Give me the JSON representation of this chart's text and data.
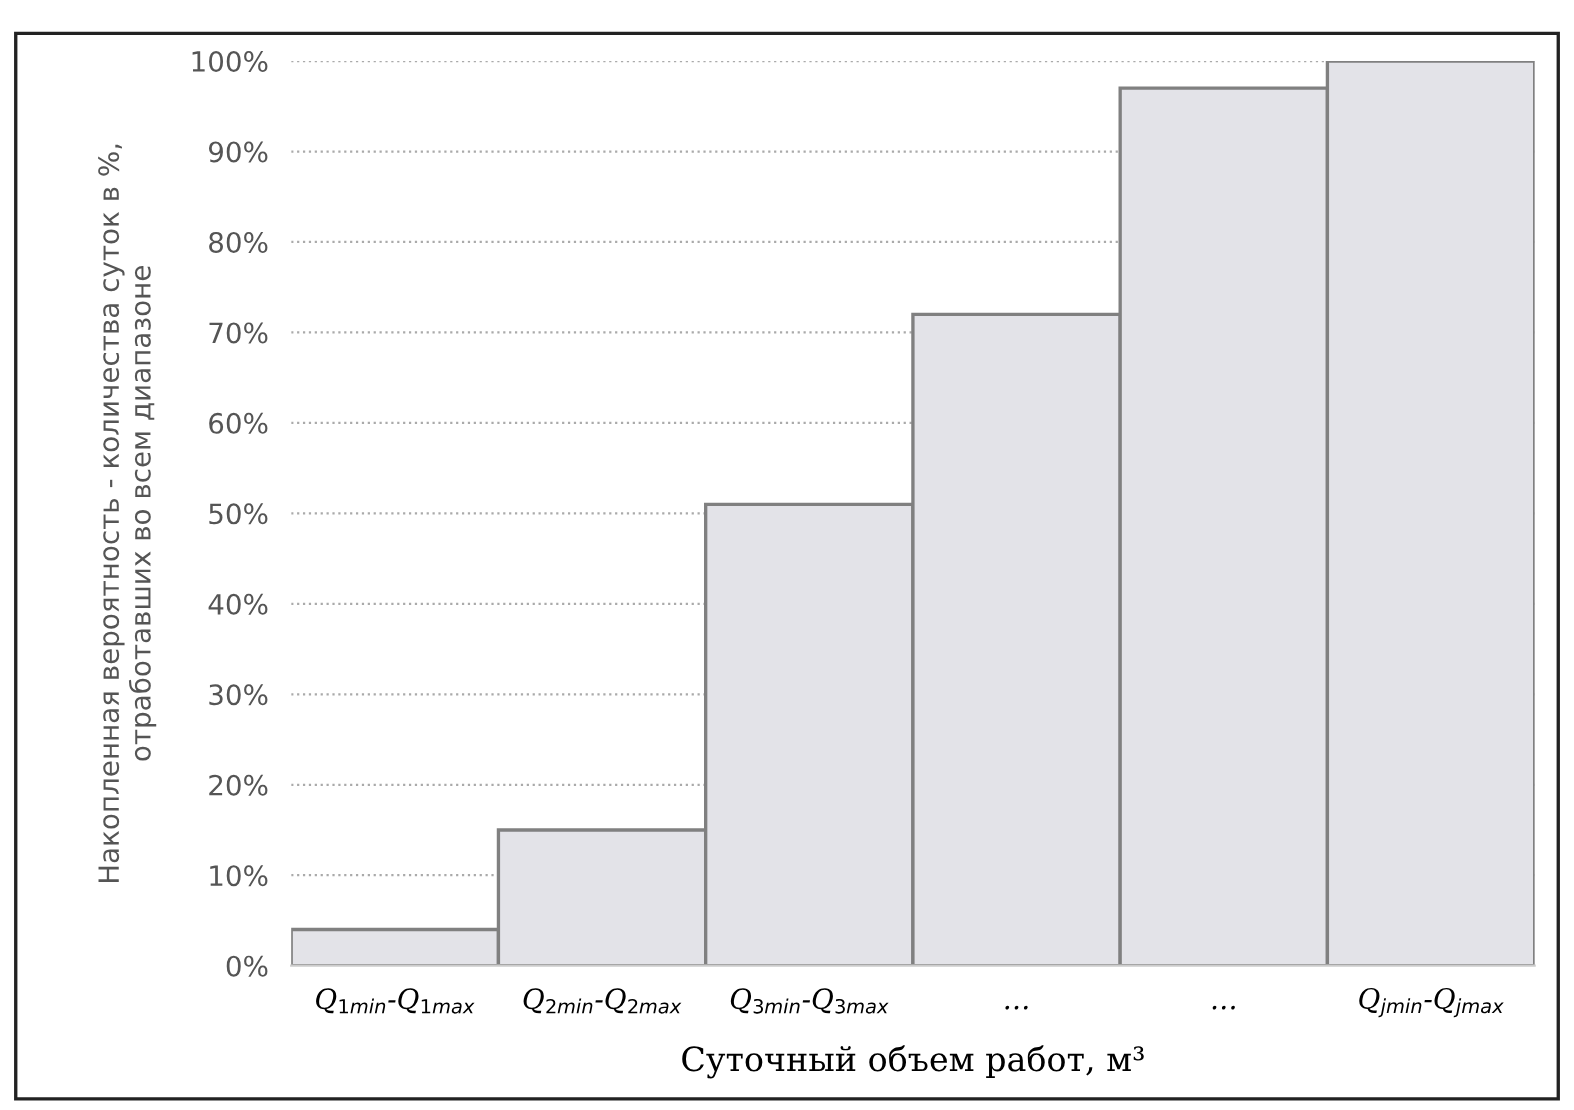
{
  "chart_data": {
    "type": "bar",
    "categories": [
      "Q$_{1min}$-Q$_{1max}$",
      "Q$_{2min}$-Q$_{2max}$",
      "Q$_{3min}$-Q$_{3max}$",
      "…",
      "…",
      "Q$_{jmin}$-Q$_{jmax}$"
    ],
    "values": [
      4,
      15,
      51,
      72,
      97,
      100
    ],
    "color": "#e3e3e8",
    "ylim": [
      0,
      100
    ],
    "yticks": [
      {
        "value": 0,
        "label": "0%"
      },
      {
        "value": 10,
        "label": "10%"
      },
      {
        "value": 20,
        "label": "20%"
      },
      {
        "value": 30,
        "label": "30%"
      },
      {
        "value": 40,
        "label": "40%"
      },
      {
        "value": 50,
        "label": "50%"
      },
      {
        "value": 60,
        "label": "60%"
      },
      {
        "value": 70,
        "label": "70%"
      },
      {
        "value": 80,
        "label": "80%"
      },
      {
        "value": 90,
        "label": "90%"
      },
      {
        "value": 100,
        "label": "100%"
      }
    ],
    "xlabel": "Суточный объем работ, м³",
    "ylabel": "Накопленная вероятность - количества суток в %,\nотработавших во всем диапазоне",
    "grid": "y"
  }
}
